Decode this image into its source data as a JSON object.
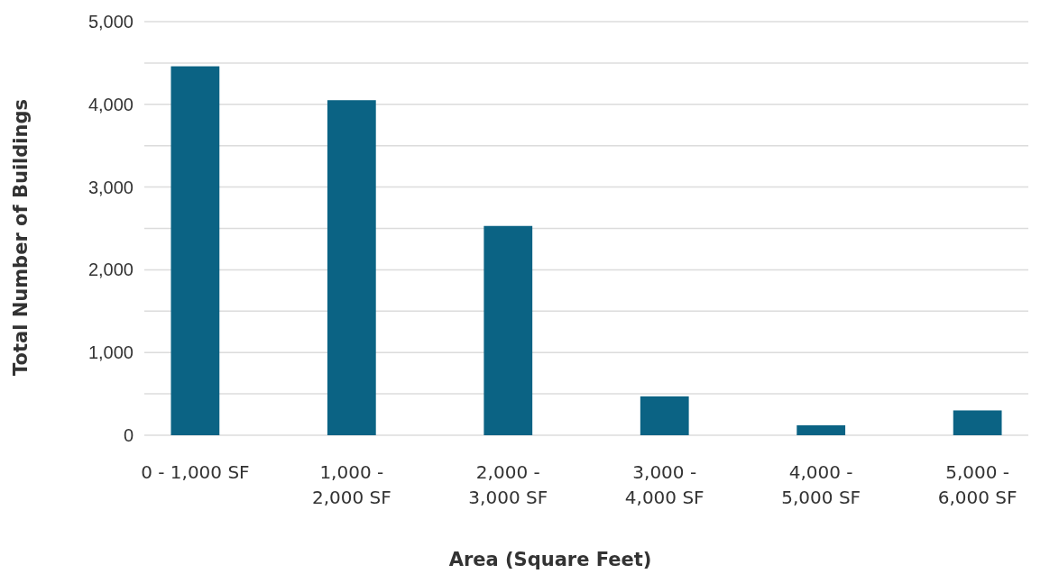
{
  "chart_data": {
    "type": "bar",
    "xlabel": "Area (Square Feet)",
    "ylabel": "Total Number of Buildings",
    "categories": [
      "0 - 1,000 SF",
      "1,000 - 2,000 SF",
      "2,000 - 3,000 SF",
      "3,000 - 4,000 SF",
      "4,000 - 5,000 SF",
      "5,000 - 6,000 SF"
    ],
    "values": [
      4460,
      4050,
      2530,
      470,
      120,
      300
    ],
    "color": "#0b6384",
    "ylim": [
      0,
      5000
    ],
    "yticks": [
      {
        "value": 0,
        "label": "0"
      },
      {
        "value": 500,
        "label": null
      },
      {
        "value": 1000,
        "label": "1,000"
      },
      {
        "value": 1500,
        "label": null
      },
      {
        "value": 2000,
        "label": "2,000"
      },
      {
        "value": 2500,
        "label": null
      },
      {
        "value": 3000,
        "label": "3,000"
      },
      {
        "value": 3500,
        "label": null
      },
      {
        "value": 4000,
        "label": "4,000"
      },
      {
        "value": 4500,
        "label": null
      },
      {
        "value": 5000,
        "label": "5,000"
      }
    ],
    "grid": "y"
  }
}
